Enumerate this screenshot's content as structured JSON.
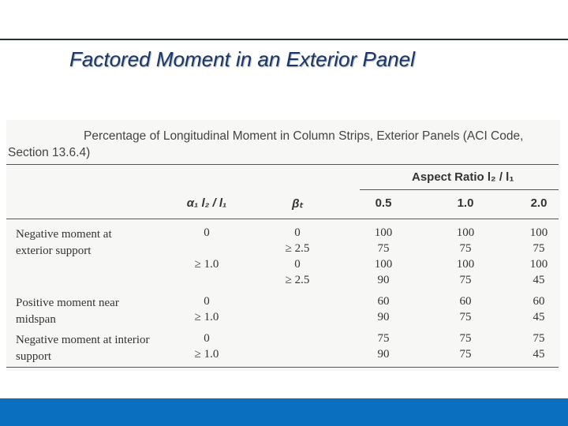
{
  "slide": {
    "title": "Factored Moment in an Exterior Panel"
  },
  "table": {
    "caption": "Percentage of Longitudinal Moment in Column Strips, Exterior Panels (ACI Code, Section 13.6.4)",
    "group_header": "Aspect Ratio l₂ / l₁",
    "columns": [
      "α₁ l₂ / l₁",
      "βₜ",
      "0.5",
      "1.0",
      "2.0"
    ],
    "groups": [
      {
        "label": "Negative moment at exterior support",
        "rows": [
          {
            "alpha": "0",
            "beta": "0",
            "values": [
              100,
              100,
              100
            ]
          },
          {
            "beta": "≥ 2.5",
            "values": [
              75,
              75,
              75
            ]
          },
          {
            "alpha": "≥ 1.0",
            "beta": "0",
            "values": [
              100,
              100,
              100
            ]
          },
          {
            "beta": "≥ 2.5",
            "values": [
              90,
              75,
              45
            ]
          }
        ]
      },
      {
        "label": "Positive moment near midspan",
        "rows": [
          {
            "alpha": "0",
            "values": [
              60,
              60,
              60
            ]
          },
          {
            "alpha": "≥ 1.0",
            "values": [
              90,
              75,
              45
            ]
          }
        ]
      },
      {
        "label": "Negative moment at interior support",
        "rows": [
          {
            "alpha": "0",
            "values": [
              75,
              75,
              75
            ]
          },
          {
            "alpha": "≥ 1.0",
            "values": [
              90,
              75,
              45
            ]
          }
        ]
      }
    ]
  }
}
